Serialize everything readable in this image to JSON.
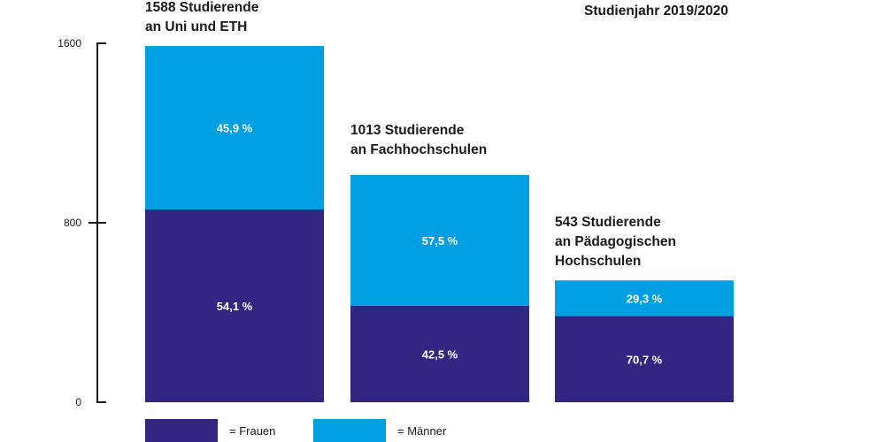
{
  "chart_data": {
    "type": "bar",
    "stacked": true,
    "title": "Studienjahr 2019/2020",
    "xlabel": "",
    "ylabel": "",
    "ylim": [
      0,
      1600
    ],
    "yticks": [
      0,
      800,
      1600
    ],
    "grid": false,
    "legend_position": "bottom-left",
    "categories": [
      {
        "line1": "1588 Studierende",
        "line2": "an Uni und ETH",
        "line3": "",
        "total": 1588
      },
      {
        "line1": "1013 Studierende",
        "line2": "an Fachhochschulen",
        "line3": "",
        "total": 1013
      },
      {
        "line1": "543 Studierende",
        "line2": "an Pädagogischen",
        "line3": "Hochschulen",
        "total": 543
      }
    ],
    "series": [
      {
        "name": "Frauen",
        "legend_label": "= Frauen",
        "color": "#312783",
        "percent": [
          54.1,
          42.5,
          70.7
        ],
        "labels": [
          "54,1 %",
          "42,5 %",
          "70,7 %"
        ]
      },
      {
        "name": "Männer",
        "legend_label": "= Männer",
        "color": "#009fe3",
        "percent": [
          45.9,
          57.5,
          29.3
        ],
        "labels": [
          "45,9 %",
          "57,5 %",
          "29,3 %"
        ]
      }
    ]
  }
}
